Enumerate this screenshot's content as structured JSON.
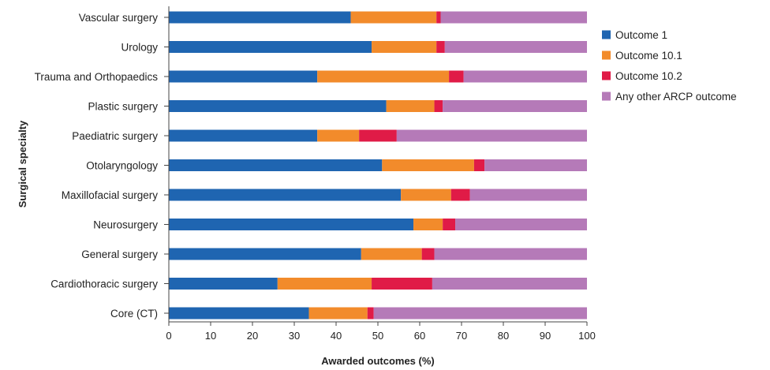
{
  "chart_data": {
    "type": "bar",
    "orientation": "horizontal",
    "stacked": true,
    "title": "",
    "xlabel": "Awarded outcomes (%)",
    "ylabel": "Surgical specialty",
    "xlim": [
      0,
      100
    ],
    "xticks": [
      0,
      10,
      20,
      30,
      40,
      50,
      60,
      70,
      80,
      90,
      100
    ],
    "grid": false,
    "legend_position": "right",
    "categories": [
      "Vascular surgery",
      "Urology",
      "Trauma and Orthopaedics",
      "Plastic surgery",
      "Paediatric surgery",
      "Otolaryngology",
      "Maxillofacial surgery",
      "Neurosurgery",
      "General surgery",
      "Cardiothoracic surgery",
      "Core (CT)"
    ],
    "series": [
      {
        "name": "Outcome 1",
        "color": "#1f65b1",
        "values": [
          43.5,
          48.5,
          35.5,
          52,
          35.5,
          51,
          55.5,
          58.5,
          46,
          26,
          33.5
        ]
      },
      {
        "name": "Outcome 10.1",
        "color": "#f28b2b",
        "values": [
          20.5,
          15.5,
          31.5,
          11.5,
          10,
          22,
          12,
          7,
          14.5,
          22.5,
          14
        ]
      },
      {
        "name": "Outcome 10.2",
        "color": "#e01b47",
        "values": [
          1,
          2,
          3.5,
          2,
          9,
          2.5,
          4.5,
          3,
          3,
          14.5,
          1.5
        ]
      },
      {
        "name": "Any other ARCP outcome",
        "color": "#b57ab8",
        "values": [
          35,
          34,
          29.5,
          34.5,
          45.5,
          24.5,
          28,
          31.5,
          36.5,
          37,
          51
        ]
      }
    ]
  }
}
